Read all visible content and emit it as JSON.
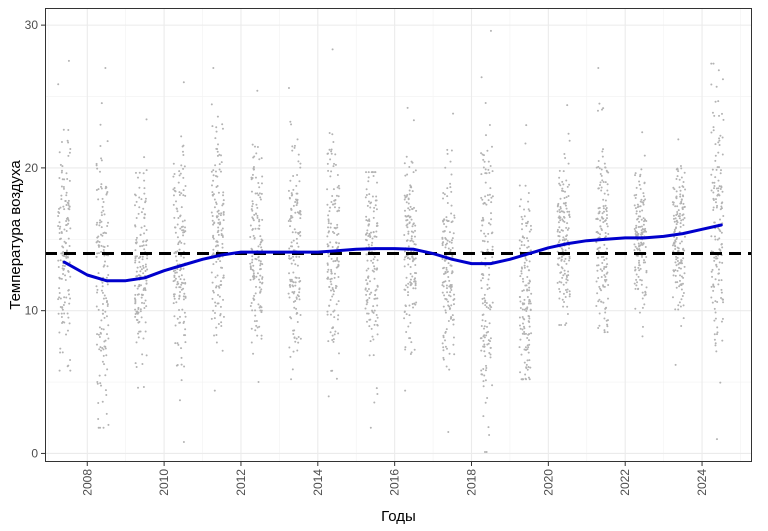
{
  "chart_data": {
    "type": "scatter",
    "xlabel": "Годы",
    "ylabel": "Температура воздуха",
    "xlim": [
      2006.9,
      2025.3
    ],
    "ylim": [
      -0.6,
      31.2
    ],
    "x_ticks": [
      2008,
      2010,
      2012,
      2014,
      2016,
      2018,
      2020,
      2022,
      2024
    ],
    "x_tick_labels": [
      "2008",
      "2010",
      "2012",
      "2014",
      "2016",
      "2018",
      "2020",
      "2022",
      "2024"
    ],
    "y_ticks": [
      0,
      10,
      20,
      30
    ],
    "y_tick_labels": [
      "0",
      "10",
      "20",
      "30"
    ],
    "grid": true,
    "reference_line": {
      "y": 14,
      "style": "dashed",
      "color": "#000000"
    },
    "observation_clusters": [
      {
        "x": 2007.4,
        "min": 5.8,
        "max": 27.5,
        "center": 14.5
      },
      {
        "x": 2008.4,
        "min": 1.8,
        "max": 27.0,
        "center": 12.5
      },
      {
        "x": 2009.4,
        "min": 4.6,
        "max": 23.4,
        "center": 13.0
      },
      {
        "x": 2010.4,
        "min": 0.8,
        "max": 26.0,
        "center": 13.5
      },
      {
        "x": 2011.4,
        "min": 4.4,
        "max": 27.0,
        "center": 14.5
      },
      {
        "x": 2012.4,
        "min": 5.0,
        "max": 25.4,
        "center": 14.5
      },
      {
        "x": 2013.4,
        "min": 5.2,
        "max": 25.6,
        "center": 14.5
      },
      {
        "x": 2014.4,
        "min": 4.0,
        "max": 28.3,
        "center": 14.5
      },
      {
        "x": 2015.4,
        "min": 1.8,
        "max": 19.7,
        "center": 13.5
      },
      {
        "x": 2016.4,
        "min": 4.4,
        "max": 24.2,
        "center": 14.5
      },
      {
        "x": 2017.4,
        "min": 1.5,
        "max": 23.8,
        "center": 13.0
      },
      {
        "x": 2018.4,
        "min": 0.1,
        "max": 29.6,
        "center": 13.0
      },
      {
        "x": 2019.4,
        "min": 5.2,
        "max": 23.0,
        "center": 10.5
      },
      {
        "x": 2020.4,
        "min": 9.0,
        "max": 24.4,
        "center": 15.0
      },
      {
        "x": 2021.4,
        "min": 8.5,
        "max": 27.0,
        "center": 15.5
      },
      {
        "x": 2022.4,
        "min": 8.2,
        "max": 22.5,
        "center": 15.0
      },
      {
        "x": 2023.4,
        "min": 6.2,
        "max": 22.0,
        "center": 15.5
      },
      {
        "x": 2024.4,
        "min": 1.0,
        "max": 27.3,
        "center": 16.0
      }
    ],
    "trend": {
      "color": "#0000cc",
      "x": [
        2007.4,
        2008.0,
        2008.5,
        2009.0,
        2009.5,
        2010.0,
        2010.5,
        2011.0,
        2011.5,
        2012.0,
        2012.5,
        2013.0,
        2013.5,
        2014.0,
        2014.5,
        2015.0,
        2015.5,
        2016.0,
        2016.5,
        2017.0,
        2017.5,
        2018.0,
        2018.5,
        2019.0,
        2019.5,
        2020.0,
        2020.5,
        2021.0,
        2021.5,
        2022.0,
        2022.5,
        2023.0,
        2023.5,
        2024.0,
        2024.5
      ],
      "y": [
        13.4,
        12.5,
        12.1,
        12.1,
        12.3,
        12.8,
        13.2,
        13.6,
        13.9,
        14.1,
        14.1,
        14.1,
        14.1,
        14.1,
        14.2,
        14.3,
        14.35,
        14.35,
        14.3,
        14.0,
        13.6,
        13.3,
        13.3,
        13.6,
        14.0,
        14.4,
        14.7,
        14.9,
        15.0,
        15.1,
        15.1,
        15.2,
        15.4,
        15.7,
        16.0
      ]
    },
    "point_color": "#b3b3b3"
  }
}
